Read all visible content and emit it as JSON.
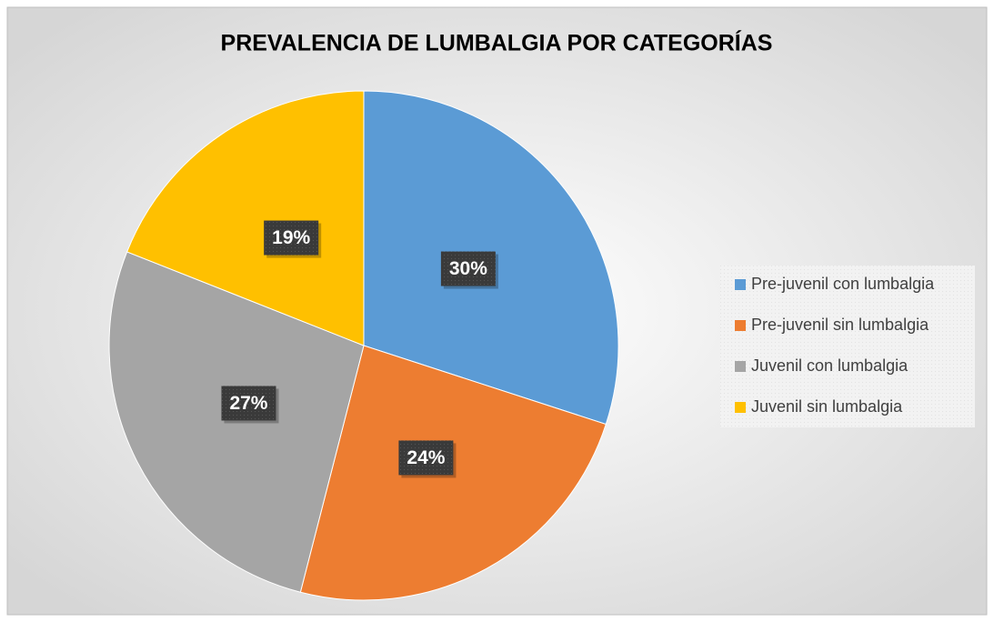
{
  "chart_data": {
    "type": "pie",
    "title": "PREVALENCIA DE LUMBALGIA POR CATEGORÍAS",
    "categories": [
      "Pre-juvenil con lumbalgia",
      "Pre-juvenil sin lumbalgia",
      "Juvenil con lumbalgia",
      "Juvenil sin lumbalgia"
    ],
    "values": [
      30,
      24,
      27,
      19
    ],
    "value_labels": [
      "30%",
      "24%",
      "27%",
      "19%"
    ],
    "colors": [
      "#5b9bd5",
      "#ed7d31",
      "#a5a5a5",
      "#ffc000"
    ],
    "legend": "right"
  }
}
